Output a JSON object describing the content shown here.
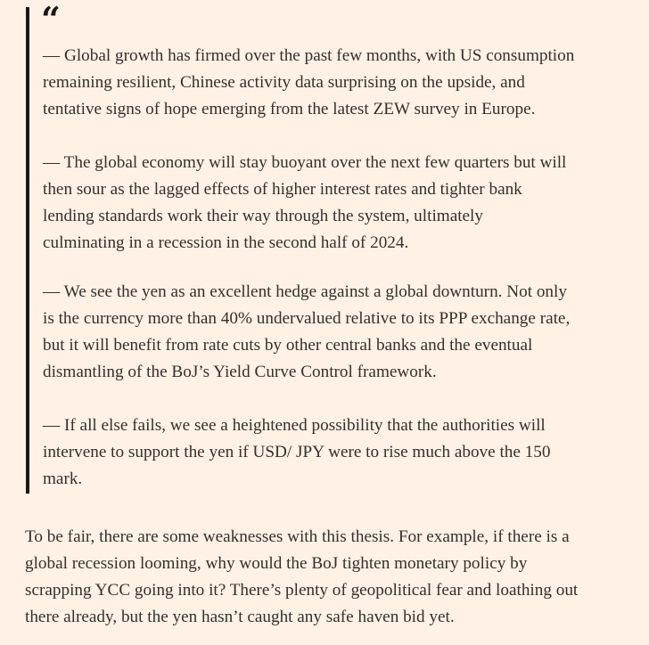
{
  "quote": {
    "mark": "“",
    "paragraphs": [
      [
        "— Global growth has firmed over the past few months, with US consumption",
        "remaining resilient, Chinese activity data surprising on the upside, and",
        "tentative signs of hope emerging from the latest ZEW survey in Europe."
      ],
      [
        "— The global economy will stay buoyant over the next few quarters but will",
        "then sour as the lagged effects of higher interest rates and tighter bank",
        "lending standards work their way through the system, ultimately",
        "culminating in a recession in the second half of 2024."
      ],
      [
        "— We see the yen as an excellent hedge against a global downturn. Not only",
        "is the currency more than 40% undervalued relative to its PPP exchange rate,",
        "but it will benefit from rate cuts by other central banks and the eventual",
        "dismantling of the BoJ’s Yield Curve Control framework."
      ],
      [
        "— If all else fails, we see a heightened possibility that the authorities will",
        "intervene to support the yen if USD/ JPY were to rise much above the 150",
        "mark."
      ]
    ]
  },
  "body": {
    "paragraphs": [
      [
        "To be fair, there are some weaknesses with this thesis. For example, if there is a",
        "global recession looming, why would the BoJ tighten monetary policy by",
        "scrapping YCC going into it? There’s plenty of geopolitical fear and loathing out",
        "there already, but the yen hasn’t caught any safe haven bid yet."
      ]
    ]
  }
}
